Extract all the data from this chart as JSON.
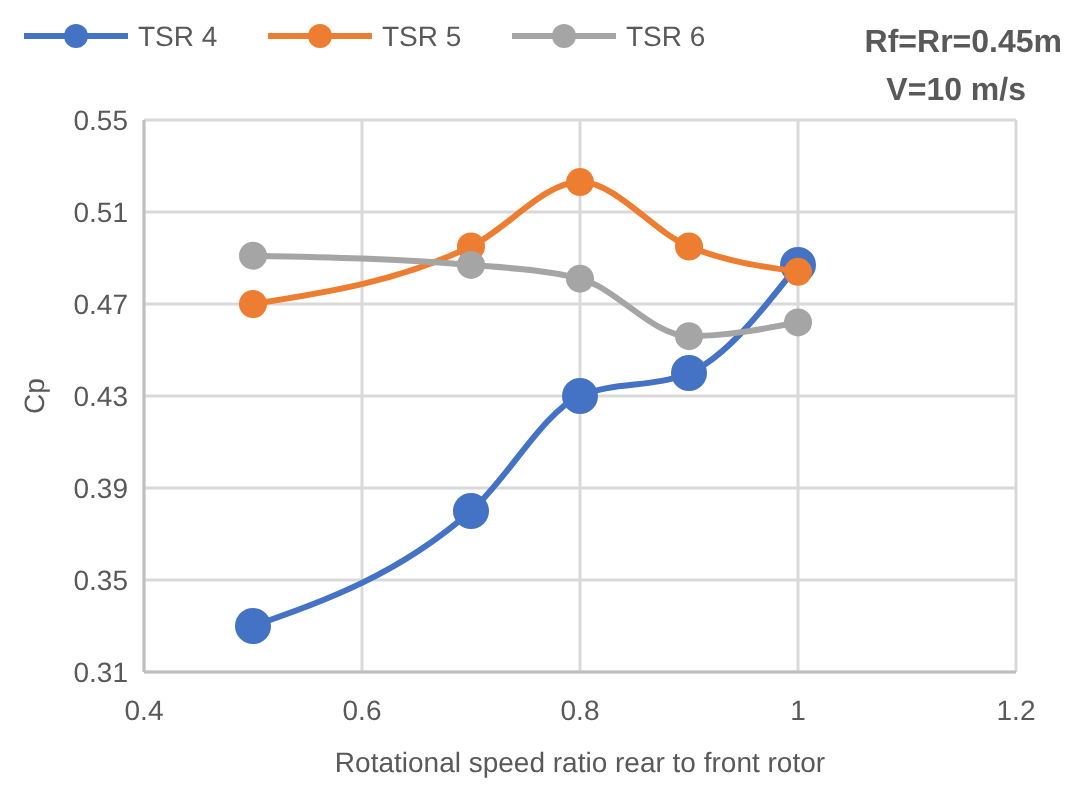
{
  "chart_data": {
    "type": "line",
    "xlabel": "Rotational speed ratio rear to front rotor",
    "ylabel": "Cp",
    "annotations": [
      "Rf=Rr=0.45m",
      "V=10 m/s"
    ],
    "x": [
      0.5,
      0.7,
      0.8,
      0.9,
      1.0
    ],
    "series": [
      {
        "name": "TSR 4",
        "color": "#4472c4",
        "values": [
          0.33,
          0.38,
          0.43,
          0.44,
          0.487
        ]
      },
      {
        "name": "TSR 5",
        "color": "#ed7d31",
        "values": [
          0.47,
          0.495,
          0.523,
          0.495,
          0.484
        ]
      },
      {
        "name": "TSR 6",
        "color": "#a5a5a5",
        "values": [
          0.491,
          0.487,
          0.481,
          0.456,
          0.462
        ]
      }
    ],
    "xlim": [
      0.4,
      1.2
    ],
    "xticks": [
      0.4,
      0.6,
      0.8,
      1,
      1.2
    ],
    "ylim": [
      0.31,
      0.55
    ],
    "yticks": [
      0.31,
      0.35,
      0.39,
      0.43,
      0.47,
      0.51,
      0.55
    ],
    "grid": true,
    "legend": "top left",
    "marker": "circle",
    "line_style": "solid"
  }
}
